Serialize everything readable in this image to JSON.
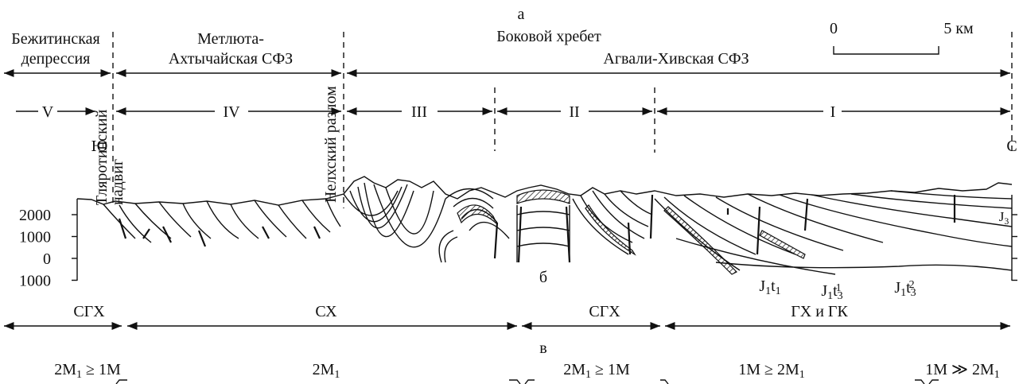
{
  "header": {
    "label": "а",
    "title": "Боковой хребет"
  },
  "scale_bar": {
    "start": "0",
    "end": "5 км"
  },
  "zones": [
    {
      "lines": [
        "Бежитинская",
        "депрессия"
      ]
    },
    {
      "lines": [
        "Метлюта-",
        "Ахтычайская СФЗ"
      ]
    },
    {
      "lines": [
        "Агвали-Хивская СФЗ"
      ]
    }
  ],
  "blocks": [
    "V",
    "IV",
    "III",
    "II",
    "I"
  ],
  "directions": {
    "south": "Ю",
    "north": "С"
  },
  "faults": [
    {
      "lines": [
        "Тляротинский",
        "надвиг"
      ]
    },
    {
      "lines": [
        "Нелхский разлом"
      ]
    }
  ],
  "elevation_ticks": [
    2000,
    1000,
    0,
    {
      "value": -1000,
      "label": "1000"
    }
  ],
  "formations": [
    {
      "parts": [
        {
          "t": "J"
        },
        {
          "sub": "3"
        }
      ]
    },
    {
      "parts": [
        {
          "t": "J"
        },
        {
          "sub": "1"
        },
        {
          "t": "t"
        },
        {
          "sub": "1"
        }
      ]
    },
    {
      "parts": [
        {
          "t": "J"
        },
        {
          "sub": "1"
        },
        {
          "t": "t"
        },
        {
          "sub": "3"
        },
        {
          "sup": "1"
        }
      ]
    },
    {
      "parts": [
        {
          "t": "J"
        },
        {
          "sub": "1"
        },
        {
          "t": "t"
        },
        {
          "sub": "3"
        },
        {
          "sup": "2"
        }
      ]
    }
  ],
  "section_b": {
    "label": "б",
    "zones": [
      "СГХ",
      "СХ",
      "СГХ",
      "ГХ и ГК"
    ]
  },
  "section_v": {
    "label": "в",
    "ratios": [
      {
        "parts": [
          {
            "t": "2M"
          },
          {
            "sub": "1"
          },
          {
            "t": " ≥ 1M"
          }
        ]
      },
      {
        "parts": [
          {
            "t": "2M"
          },
          {
            "sub": "1"
          }
        ]
      },
      {
        "parts": [
          {
            "t": "2M"
          },
          {
            "sub": "1"
          },
          {
            "t": " ≥ 1M"
          }
        ]
      },
      {
        "parts": [
          {
            "t": "1M ≥ 2M"
          },
          {
            "sub": "1"
          }
        ]
      },
      {
        "parts": [
          {
            "t": "1M ≫ 2M"
          },
          {
            "sub": "1"
          }
        ]
      }
    ]
  }
}
